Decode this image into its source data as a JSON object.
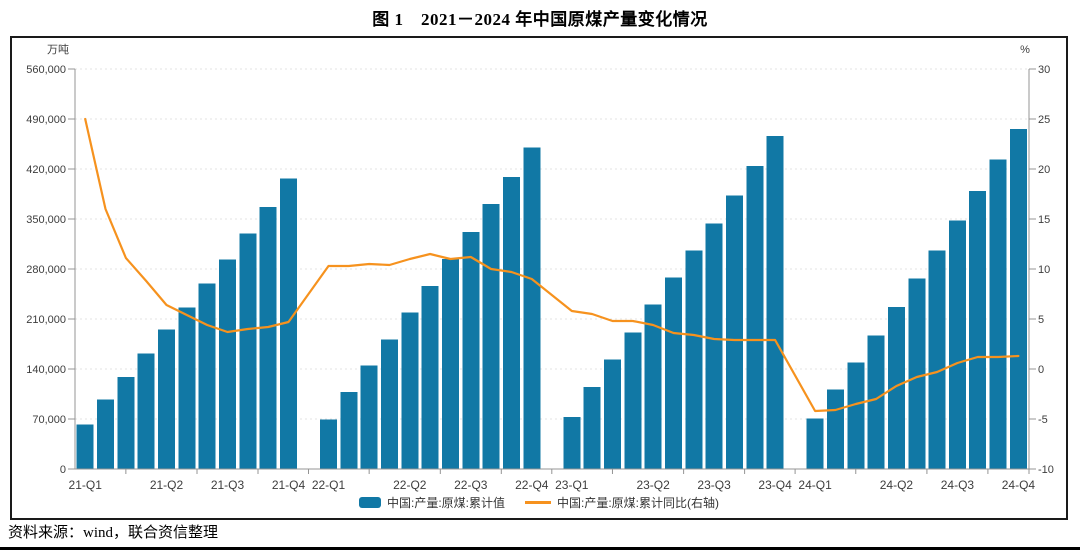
{
  "page": {
    "title": "图 1　2021－2024 年中国原煤产量变化情况",
    "source_note": "资料来源：wind，联合资信整理"
  },
  "chart": {
    "left_axis_unit": "万吨",
    "right_axis_unit": "%",
    "left_ticks": [
      "560,000",
      "490,000",
      "420,000",
      "350,000",
      "280,000",
      "210,000",
      "140,000",
      "70,000",
      "0"
    ],
    "right_ticks": [
      "30",
      "25",
      "20",
      "15",
      "10",
      "5",
      "0",
      "-5",
      "-10"
    ],
    "x_labels": [
      "21-Q1",
      "21-Q2",
      "21-Q3",
      "21-Q4",
      "22-Q1",
      "22-Q2",
      "22-Q3",
      "22-Q4",
      "23-Q1",
      "23-Q2",
      "23-Q3",
      "23-Q4",
      "24-Q1",
      "24-Q2",
      "24-Q3",
      "24-Q4"
    ],
    "legend": [
      {
        "label": "中国:产量:原煤:累计值",
        "type": "bar",
        "color": "#1178A5"
      },
      {
        "label": "中国:产量:原煤:累计同比(右轴)",
        "type": "line",
        "color": "#F6921E"
      }
    ]
  },
  "chart_data": {
    "type": "bar+line",
    "title": "图 1　2021－2024 年中国原煤产量变化情况",
    "categories": [
      "21-02",
      "21-03",
      "21-04",
      "21-05",
      "21-06",
      "21-07",
      "21-08",
      "21-09",
      "21-10",
      "21-11",
      "21-12",
      "22-02",
      "22-03",
      "22-04",
      "22-05",
      "22-06",
      "22-07",
      "22-08",
      "22-09",
      "22-10",
      "22-11",
      "22-12",
      "23-02",
      "23-03",
      "23-04",
      "23-05",
      "23-06",
      "23-07",
      "23-08",
      "23-09",
      "23-10",
      "23-11",
      "23-12",
      "24-02",
      "24-03",
      "24-04",
      "24-05",
      "24-06",
      "24-07",
      "24-08",
      "24-09",
      "24-10",
      "24-11",
      "24-12"
    ],
    "quarter_labels_shown": [
      "21-Q1",
      "21-Q2",
      "21-Q3",
      "21-Q4",
      "22-Q1",
      "22-Q2",
      "22-Q3",
      "22-Q4",
      "23-Q1",
      "23-Q2",
      "23-Q3",
      "23-Q4",
      "24-Q1",
      "24-Q2",
      "24-Q3",
      "24-Q4"
    ],
    "series": [
      {
        "name": "中国:产量:原煤:累计值",
        "type": "bar",
        "axis": "left",
        "unit": "万吨",
        "values": [
          62000,
          97000,
          129000,
          162000,
          195000,
          226000,
          260000,
          293000,
          330000,
          367000,
          407000,
          69000,
          108000,
          145000,
          181000,
          219000,
          256000,
          294000,
          332000,
          371000,
          409000,
          450000,
          73000,
          115000,
          153000,
          191000,
          230000,
          268000,
          306000,
          344000,
          383000,
          424000,
          466000,
          71000,
          111000,
          149000,
          187000,
          227000,
          267000,
          306000,
          348000,
          389000,
          433000,
          476000
        ]
      },
      {
        "name": "中国:产量:原煤:累计同比(右轴)",
        "type": "line",
        "axis": "right",
        "unit": "%",
        "values": [
          25.0,
          16.0,
          11.1,
          8.8,
          6.4,
          5.4,
          4.4,
          3.7,
          4.0,
          4.2,
          4.7,
          10.3,
          10.3,
          10.5,
          10.4,
          11.0,
          11.5,
          11.0,
          11.2,
          10.0,
          9.7,
          9.0,
          5.8,
          5.5,
          4.8,
          4.8,
          4.4,
          3.6,
          3.4,
          3.0,
          2.9,
          2.9,
          2.9,
          -4.2,
          -4.1,
          -3.5,
          -3.0,
          -1.7,
          -0.8,
          -0.3,
          0.6,
          1.2,
          1.2,
          1.3
        ]
      }
    ],
    "left_axis": {
      "label": "万吨",
      "min": 0,
      "max": 560000,
      "tick_step": 70000
    },
    "right_axis": {
      "label": "%",
      "min": -10,
      "max": 30,
      "tick_step": 5
    },
    "grid": true,
    "legend_position": "bottom",
    "colors": {
      "bar": "#1178A5",
      "line": "#F6921E",
      "grid": "#e3e3e3",
      "axis": "#949494",
      "text": "#3d3d3d"
    }
  }
}
